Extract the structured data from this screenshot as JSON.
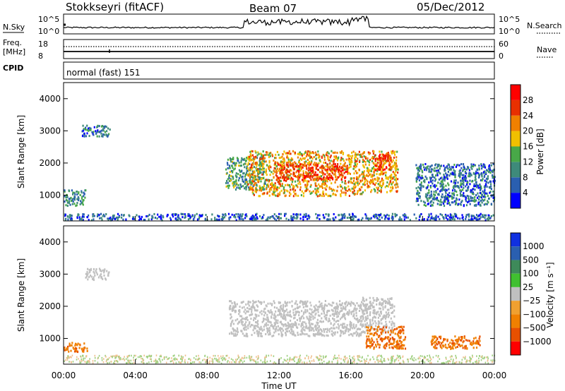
{
  "header": {
    "station": "Stokkseyri (fitACF)",
    "beam": "Beam 07",
    "date": "05/Dec/2012"
  },
  "noise_panel": {
    "left_label": "N.Sky",
    "left_ticks": [
      "10^5",
      "10^0"
    ],
    "right_ticks": [
      "10^5",
      "10^0"
    ],
    "right_label": "N.Search"
  },
  "freq_panel": {
    "label_line1": "Freq.",
    "label_line2": "[MHz]",
    "left_ticks": [
      "18",
      "8"
    ],
    "right_ticks": [
      "60",
      "0"
    ],
    "right_label": "Nave"
  },
  "cpid_panel": {
    "label": "CPID",
    "value": "normal (fast) 151"
  },
  "power_panel": {
    "ylabel": "Slant Range [km]",
    "yticks": [
      "4000",
      "3000",
      "2000",
      "1000"
    ],
    "colorbar_label": "Power [dB]",
    "colorbar_ticks": [
      "28",
      "24",
      "20",
      "16",
      "12",
      "8",
      "4"
    ],
    "colors": [
      "#0000ff",
      "#2a5fb0",
      "#3e8a7a",
      "#48a848",
      "#f0c000",
      "#f08000",
      "#e83000",
      "#ff0000"
    ]
  },
  "velocity_panel": {
    "ylabel": "Slant Range [km]",
    "yticks": [
      "4000",
      "3000",
      "2000",
      "1000"
    ],
    "colorbar_label": "Velocity [m s⁻¹]",
    "colorbar_ticks": [
      "1000",
      "500",
      "100",
      "25",
      "−25",
      "−100",
      "−500",
      "−1000"
    ],
    "colors": [
      "#1030e0",
      "#2a5fb0",
      "#3e8a5a",
      "#40c030",
      "#c0c0c0",
      "#f0a030",
      "#f08000",
      "#e85000",
      "#ff0000"
    ]
  },
  "x_axis": {
    "ticks": [
      "00:00",
      "04:00",
      "08:00",
      "12:00",
      "16:00",
      "20:00",
      "00:00"
    ],
    "xlabel": "Time UT"
  },
  "chart_data": {
    "type": "heatmap",
    "title": "Stokkseyri (fitACF)   Beam 07   05/Dec/2012",
    "xlabel": "Time UT",
    "ylabel": "Slant Range [km]",
    "x_range_hours": [
      0,
      24
    ],
    "y_range_km": [
      200,
      4500
    ],
    "power_colorbar": {
      "label": "Power [dB]",
      "ticks": [
        4,
        8,
        12,
        16,
        20,
        24,
        28
      ],
      "range": [
        0,
        30
      ]
    },
    "velocity_colorbar": {
      "label": "Velocity [m s^-1]",
      "ticks": [
        -1000,
        -500,
        -100,
        -25,
        25,
        100,
        500,
        1000
      ]
    },
    "power_regions": [
      {
        "t": [
          0,
          1.2
        ],
        "r": [
          700,
          1200
        ],
        "db": 10
      },
      {
        "t": [
          1.0,
          2.6
        ],
        "r": [
          2850,
          3200
        ],
        "db": 8
      },
      {
        "t": [
          0,
          24
        ],
        "r": [
          250,
          450
        ],
        "db": 6
      },
      {
        "t": [
          9.0,
          11.2
        ],
        "r": [
          1200,
          2200
        ],
        "db": 12
      },
      {
        "t": [
          10.2,
          16.6
        ],
        "r": [
          1000,
          2400
        ],
        "db": 20
      },
      {
        "t": [
          11.8,
          15.8
        ],
        "r": [
          1500,
          2000
        ],
        "db": 26
      },
      {
        "t": [
          16.6,
          18.6
        ],
        "r": [
          1100,
          2400
        ],
        "db": 20
      },
      {
        "t": [
          17.3,
          18.2
        ],
        "r": [
          1800,
          2300
        ],
        "db": 28
      },
      {
        "t": [
          19.6,
          24
        ],
        "r": [
          700,
          2000
        ],
        "db": 8
      }
    ],
    "velocity_regions": [
      {
        "t": [
          0,
          1.3
        ],
        "r": [
          600,
          900
        ],
        "v": -400
      },
      {
        "t": [
          1.2,
          2.5
        ],
        "r": [
          2850,
          3200
        ],
        "v": 0
      },
      {
        "t": [
          9.2,
          16.6
        ],
        "r": [
          1100,
          2200
        ],
        "v": 0
      },
      {
        "t": [
          16.6,
          18.4
        ],
        "r": [
          1200,
          2300
        ],
        "v": 0
      },
      {
        "t": [
          16.8,
          19.0
        ],
        "r": [
          700,
          1400
        ],
        "v": -450
      },
      {
        "t": [
          20.4,
          23.2
        ],
        "r": [
          700,
          1100
        ],
        "v": -400
      }
    ]
  }
}
